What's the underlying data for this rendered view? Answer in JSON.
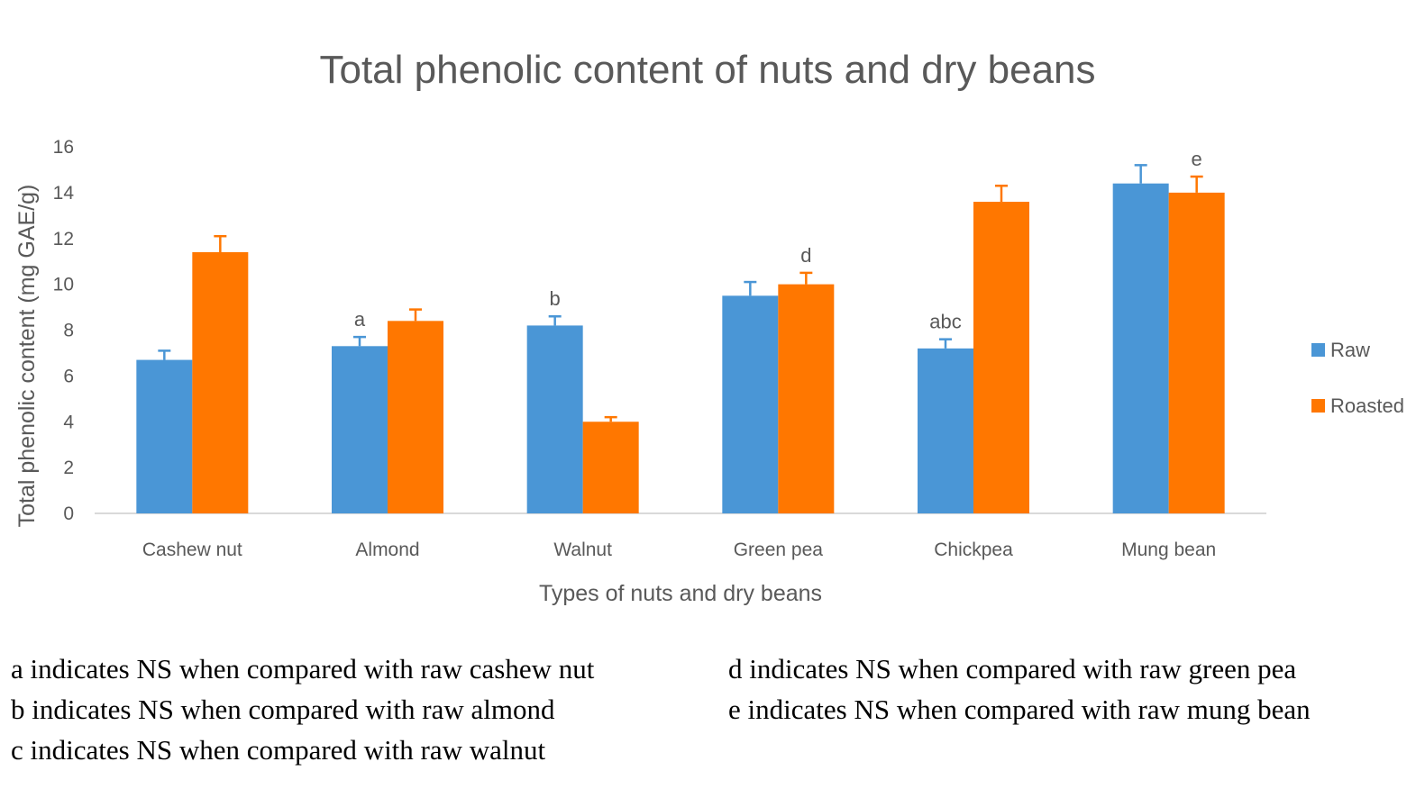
{
  "chart_data": {
    "type": "bar",
    "title": "Total phenolic content of nuts and dry beans",
    "xlabel": "Types of nuts and dry beans",
    "ylabel": "Total phenolic content (mg GAE/g)",
    "ylim": [
      0,
      16
    ],
    "yticks": [
      0,
      2,
      4,
      6,
      8,
      10,
      12,
      14,
      16
    ],
    "categories": [
      "Cashew nut",
      "Almond",
      "Walnut",
      "Green pea",
      "Chickpea",
      "Mung bean"
    ],
    "series": [
      {
        "name": "Raw",
        "color": "#4a96d6",
        "values": [
          6.7,
          7.3,
          8.2,
          9.5,
          7.2,
          14.4
        ],
        "errors": [
          0.4,
          0.4,
          0.4,
          0.6,
          0.4,
          0.8
        ],
        "annotations": [
          "",
          "a",
          "b",
          "",
          "abc",
          ""
        ]
      },
      {
        "name": "Roasted",
        "color": "#ff7700",
        "values": [
          11.4,
          8.4,
          4.0,
          10.0,
          13.6,
          14.0
        ],
        "errors": [
          0.7,
          0.5,
          0.2,
          0.5,
          0.7,
          0.7
        ],
        "annotations": [
          "",
          "",
          "",
          "d",
          "",
          "e"
        ]
      }
    ],
    "grid": false,
    "legend_position": "right"
  },
  "footnotes": {
    "left": [
      "a indicates NS when compared with raw cashew nut",
      "b indicates NS when compared with raw almond",
      "c indicates NS when compared with raw walnut"
    ],
    "right": [
      "d indicates NS when compared with raw green pea",
      "e indicates NS when compared with raw mung bean"
    ]
  }
}
